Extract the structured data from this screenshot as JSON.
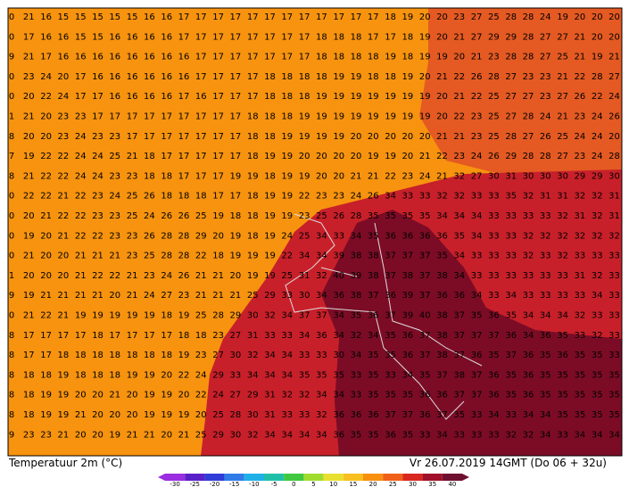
{
  "map": {
    "caption": "Temperatuur 2m (°C)",
    "run_info": "Vr 26.07.2019 14GMT (Do 06 + 32u)",
    "legend": {
      "ticks": [
        "-30",
        "-25",
        "-20",
        "-15",
        "-10",
        "-5",
        "0",
        "5",
        "10",
        "15",
        "20",
        "25",
        "30",
        "35",
        "40"
      ],
      "colors": [
        "#9a2ee0",
        "#5a20c8",
        "#2f3cd8",
        "#2f7ce8",
        "#20b0e8",
        "#20c0a8",
        "#40c840",
        "#a0dc30",
        "#e8e030",
        "#f8c020",
        "#f89010",
        "#f06018",
        "#d82820",
        "#a01028",
        "#701030"
      ]
    },
    "grid": [
      [
        0,
        21,
        16,
        15,
        15,
        15,
        15,
        15,
        16,
        16,
        17,
        17,
        17,
        17,
        17,
        17,
        17,
        17,
        17,
        17,
        17,
        17,
        18,
        19,
        20,
        20,
        23,
        27,
        25,
        28,
        28,
        24,
        19,
        20,
        20,
        20
      ],
      [
        0,
        17,
        16,
        16,
        15,
        15,
        16,
        16,
        16,
        16,
        17,
        17,
        17,
        17,
        17,
        17,
        17,
        17,
        18,
        18,
        18,
        17,
        17,
        18,
        19,
        20,
        21,
        27,
        29,
        29,
        28,
        27,
        27,
        21,
        20,
        20
      ],
      [
        9,
        21,
        17,
        16,
        16,
        16,
        16,
        16,
        16,
        16,
        16,
        17,
        17,
        17,
        17,
        17,
        17,
        17,
        18,
        18,
        18,
        18,
        19,
        18,
        19,
        19,
        20,
        21,
        23,
        28,
        28,
        27,
        25,
        21,
        19,
        21
      ],
      [
        0,
        23,
        24,
        20,
        17,
        16,
        16,
        16,
        16,
        16,
        16,
        17,
        17,
        17,
        17,
        18,
        18,
        18,
        18,
        19,
        19,
        18,
        18,
        19,
        20,
        21,
        22,
        26,
        28,
        27,
        23,
        23,
        21,
        22,
        28,
        27
      ],
      [
        0,
        20,
        22,
        24,
        17,
        17,
        16,
        16,
        16,
        16,
        17,
        16,
        17,
        17,
        17,
        18,
        18,
        18,
        19,
        19,
        19,
        19,
        19,
        19,
        19,
        20,
        21,
        22,
        25,
        27,
        27,
        23,
        27,
        26,
        22,
        24
      ],
      [
        1,
        21,
        20,
        23,
        23,
        17,
        17,
        17,
        17,
        17,
        17,
        17,
        17,
        17,
        18,
        18,
        18,
        19,
        19,
        19,
        19,
        19,
        19,
        19,
        19,
        20,
        22,
        23,
        25,
        27,
        28,
        24,
        21,
        23,
        24,
        26
      ],
      [
        8,
        20,
        20,
        23,
        24,
        23,
        23,
        17,
        17,
        17,
        17,
        17,
        17,
        17,
        18,
        18,
        19,
        19,
        19,
        19,
        20,
        20,
        20,
        20,
        20,
        21,
        21,
        23,
        25,
        28,
        27,
        26,
        25,
        24,
        24,
        20
      ],
      [
        7,
        19,
        22,
        22,
        24,
        24,
        25,
        21,
        18,
        17,
        17,
        17,
        17,
        17,
        18,
        19,
        19,
        20,
        20,
        20,
        20,
        19,
        19,
        20,
        21,
        22,
        23,
        24,
        26,
        29,
        28,
        28,
        27,
        23,
        24,
        28
      ],
      [
        8,
        21,
        22,
        22,
        24,
        24,
        23,
        23,
        18,
        18,
        17,
        17,
        17,
        19,
        19,
        18,
        19,
        19,
        20,
        20,
        21,
        21,
        22,
        23,
        24,
        21,
        32,
        27,
        30,
        31,
        30,
        30,
        30,
        29,
        29,
        30
      ],
      [
        0,
        22,
        22,
        21,
        22,
        23,
        24,
        25,
        26,
        18,
        18,
        18,
        17,
        17,
        18,
        19,
        19,
        22,
        23,
        23,
        24,
        26,
        34,
        33,
        33,
        32,
        32,
        33,
        33,
        35,
        32,
        31,
        31,
        32,
        32,
        31
      ],
      [
        0,
        20,
        21,
        22,
        22,
        23,
        23,
        25,
        24,
        26,
        26,
        25,
        19,
        18,
        18,
        19,
        19,
        23,
        25,
        26,
        28,
        35,
        35,
        35,
        35,
        34,
        34,
        34,
        33,
        33,
        33,
        33,
        32,
        31,
        32,
        31
      ],
      [
        0,
        19,
        20,
        21,
        22,
        22,
        23,
        23,
        26,
        28,
        28,
        29,
        20,
        19,
        18,
        19,
        24,
        25,
        34,
        33,
        34,
        35,
        36,
        36,
        36,
        36,
        35,
        34,
        33,
        33,
        32,
        32,
        32,
        32,
        32,
        32
      ],
      [
        0,
        21,
        20,
        20,
        21,
        21,
        21,
        23,
        25,
        28,
        28,
        22,
        18,
        19,
        19,
        19,
        22,
        34,
        34,
        39,
        38,
        38,
        37,
        37,
        37,
        35,
        34,
        33,
        33,
        33,
        32,
        33,
        32,
        33,
        33,
        33
      ],
      [
        1,
        20,
        20,
        20,
        21,
        22,
        22,
        21,
        23,
        24,
        26,
        21,
        21,
        20,
        19,
        19,
        25,
        31,
        32,
        40,
        39,
        38,
        37,
        38,
        37,
        38,
        34,
        33,
        33,
        33,
        33,
        33,
        33,
        31,
        32,
        33
      ],
      [
        9,
        19,
        21,
        21,
        21,
        21,
        20,
        21,
        24,
        27,
        23,
        21,
        21,
        21,
        25,
        29,
        33,
        30,
        34,
        36,
        38,
        37,
        36,
        39,
        37,
        36,
        36,
        34,
        33,
        34,
        33,
        33,
        33,
        33,
        34,
        33
      ],
      [
        0,
        21,
        22,
        21,
        19,
        19,
        19,
        19,
        19,
        18,
        19,
        25,
        28,
        29,
        30,
        32,
        34,
        37,
        37,
        34,
        35,
        36,
        37,
        39,
        40,
        38,
        37,
        35,
        36,
        35,
        34,
        34,
        34,
        32,
        33,
        33
      ],
      [
        8,
        17,
        17,
        17,
        17,
        18,
        17,
        17,
        17,
        17,
        18,
        18,
        23,
        27,
        31,
        33,
        33,
        34,
        36,
        34,
        32,
        34,
        35,
        36,
        37,
        38,
        37,
        37,
        37,
        36,
        34,
        36,
        35,
        33,
        32,
        33
      ],
      [
        8,
        17,
        17,
        18,
        18,
        18,
        18,
        18,
        18,
        18,
        19,
        23,
        27,
        30,
        32,
        34,
        34,
        33,
        33,
        30,
        34,
        35,
        35,
        36,
        37,
        38,
        37,
        36,
        35,
        37,
        36,
        35,
        36,
        35,
        35,
        33
      ],
      [
        8,
        18,
        18,
        19,
        18,
        18,
        18,
        19,
        19,
        20,
        22,
        24,
        29,
        33,
        34,
        34,
        34,
        35,
        35,
        35,
        33,
        35,
        33,
        34,
        35,
        37,
        38,
        37,
        36,
        35,
        36,
        35,
        35,
        35,
        35,
        35
      ],
      [
        8,
        18,
        19,
        19,
        20,
        20,
        21,
        20,
        19,
        19,
        20,
        22,
        24,
        27,
        29,
        31,
        32,
        32,
        34,
        34,
        33,
        35,
        35,
        35,
        36,
        36,
        37,
        37,
        36,
        35,
        36,
        35,
        35,
        35,
        35,
        35
      ],
      [
        8,
        18,
        19,
        19,
        21,
        20,
        20,
        20,
        19,
        19,
        19,
        20,
        25,
        28,
        30,
        31,
        33,
        33,
        32,
        36,
        36,
        36,
        37,
        37,
        36,
        37,
        35,
        33,
        34,
        33,
        34,
        34,
        35,
        35,
        35,
        35
      ],
      [
        9,
        23,
        23,
        21,
        20,
        20,
        19,
        21,
        21,
        20,
        21,
        25,
        29,
        30,
        32,
        34,
        34,
        34,
        34,
        36,
        35,
        35,
        36,
        35,
        33,
        34,
        33,
        33,
        33,
        32,
        32,
        34,
        33,
        34,
        34,
        34
      ]
    ]
  }
}
